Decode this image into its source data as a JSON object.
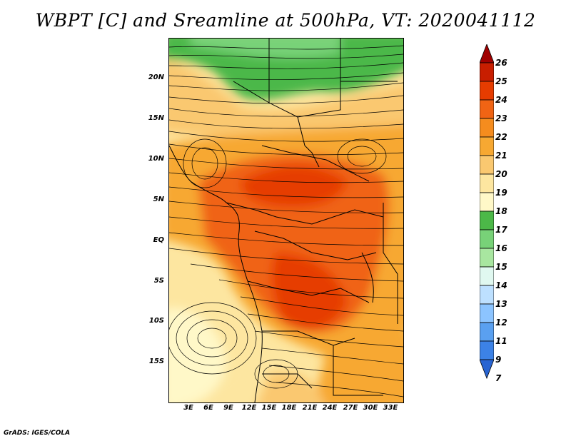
{
  "title": "WBPT [C] and Sreamline at 500hPa, VT: 2020041112",
  "footer": "GrADS: IGES/COLA",
  "y_axis_labels": [
    "20N",
    "15N",
    "10N",
    "5N",
    "EQ",
    "5S",
    "10S",
    "15S"
  ],
  "x_axis_labels": [
    "3E",
    "6E",
    "9E",
    "12E",
    "15E",
    "18E",
    "21E",
    "24E",
    "27E",
    "30E",
    "33E"
  ],
  "colorbar": {
    "levels": [
      "26",
      "25",
      "24",
      "23",
      "22",
      "21",
      "20",
      "19",
      "18",
      "17",
      "16",
      "15",
      "14",
      "13",
      "12",
      "11",
      "9",
      "7"
    ],
    "colors": [
      "#a00000",
      "#c81e00",
      "#e63c00",
      "#f06414",
      "#f58c1e",
      "#f7a832",
      "#fac870",
      "#fde6a0",
      "#fff8c8",
      "#4cb848",
      "#78d278",
      "#a8e6a0",
      "#e0f8f0",
      "#bde0ff",
      "#8cc4ff",
      "#5aa0f0",
      "#3c82e6",
      "#2864d2"
    ]
  }
}
